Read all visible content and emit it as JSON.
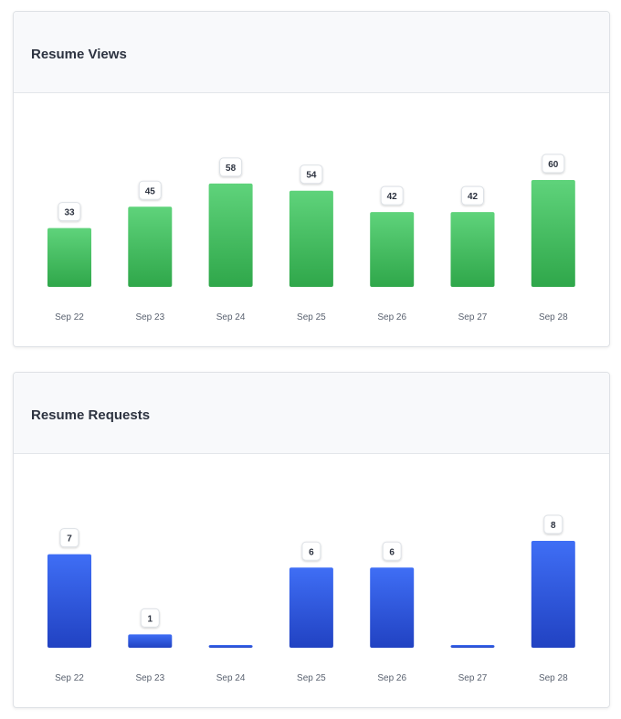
{
  "colors": {
    "views_top": "#5fd37b",
    "views_bottom": "#2fa74a",
    "requests_top": "#3f6ef5",
    "requests_bottom": "#2142c2",
    "label_text": "#2d3340",
    "tick_text": "#5a6270"
  },
  "chart_data": [
    {
      "type": "bar",
      "title": "Resume Views",
      "categories": [
        "Sep 22",
        "Sep 23",
        "Sep 24",
        "Sep 25",
        "Sep 26",
        "Sep 27",
        "Sep 28"
      ],
      "values": [
        33,
        45,
        58,
        54,
        42,
        42,
        60
      ],
      "ylim": [
        0,
        60
      ],
      "grid": false,
      "data_labels": true
    },
    {
      "type": "bar",
      "title": "Resume Requests",
      "categories": [
        "Sep 22",
        "Sep 23",
        "Sep 24",
        "Sep 25",
        "Sep 26",
        "Sep 27",
        "Sep 28"
      ],
      "values": [
        7,
        1,
        0,
        6,
        6,
        0,
        8
      ],
      "ylim": [
        0,
        8
      ],
      "grid": false,
      "data_labels": true
    }
  ]
}
